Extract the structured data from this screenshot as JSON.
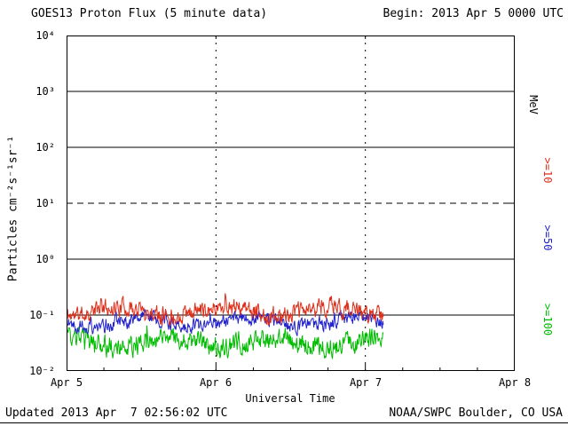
{
  "header": {
    "title": "GOES13 Proton Flux (5 minute data)",
    "begin": "Begin: 2013 Apr 5 0000 UTC"
  },
  "footer": {
    "updated": "Updated 2013 Apr  7 02:56:02 UTC",
    "source": "NOAA/SWPC Boulder, CO USA"
  },
  "chart_data": {
    "type": "line",
    "title": "GOES13 Proton Flux (5 minute data)",
    "xlabel": "Universal Time",
    "ylabel": "Particles cm⁻²s⁻¹sr⁻¹",
    "x_ticks": [
      "Apr 5",
      "Apr 6",
      "Apr 7",
      "Apr 8"
    ],
    "x_range_days": [
      0,
      3
    ],
    "y_log_range": [
      -2,
      4
    ],
    "y_tick_labels": [
      "10⁴",
      "10³",
      "10²",
      "10¹",
      "10⁰",
      "10⁻¹",
      "10⁻²"
    ],
    "grid": {
      "solid_decades": [
        3,
        2,
        0,
        -1
      ],
      "dashed_decades": [
        1
      ],
      "vertical_days": [
        1,
        2
      ]
    },
    "right_axis_labels": [
      {
        "text": "MeV",
        "color": "#000000"
      },
      {
        "text": ">=10",
        "color": "#dd2f1a"
      },
      {
        "text": ">=50",
        "color": "#2222cc"
      },
      {
        "text": ">=100",
        "color": "#00bb00"
      }
    ],
    "series": [
      {
        "name": ">=100 MeV",
        "color": "#00bb00",
        "seed": 33,
        "x_start": 0,
        "x_end": 2.12,
        "log_mean": -1.5,
        "log_noise": 0.3,
        "points_per_day": 288
      },
      {
        "name": ">=50 MeV",
        "color": "#2222cc",
        "seed": 22,
        "x_start": 0,
        "x_end": 2.12,
        "log_mean": -1.12,
        "log_noise": 0.22,
        "points_per_day": 288
      },
      {
        "name": ">=10 MeV",
        "color": "#dd2f1a",
        "seed": 11,
        "x_start": 0,
        "x_end": 2.12,
        "log_mean": -0.93,
        "log_noise": 0.26,
        "points_per_day": 288
      }
    ],
    "approx_flux_levels": {
      ">=10 MeV": 0.12,
      ">=50 MeV": 0.075,
      ">=100 MeV": 0.032
    },
    "data_end_label": "data ends ~2013 Apr 7 0300 UTC"
  }
}
